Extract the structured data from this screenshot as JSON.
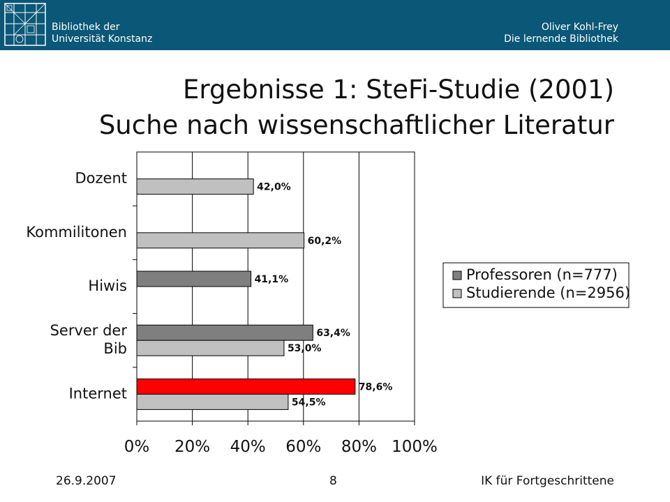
{
  "header": {
    "institution_line1": "Bibliothek der",
    "institution_line2": "Universität Konstanz",
    "author": "Oliver Kohl-Frey",
    "subtitle": "Die lernende Bibliothek",
    "background_color": "#0b5777",
    "logo_icon": "university-library-logo-icon"
  },
  "slide": {
    "title_line1": "Ergebnisse 1: SteFi-Studie (2001)",
    "title_line2": "Suche nach wissenschaftlicher Literatur"
  },
  "footer": {
    "date": "26.9.2007",
    "page_number": "8",
    "course": "IK für Fortgeschrittene"
  },
  "chart_data": {
    "type": "bar",
    "orientation": "horizontal",
    "title": "",
    "xlabel": "",
    "ylabel": "",
    "xlim": [
      0,
      100
    ],
    "x_ticks": [
      "0%",
      "20%",
      "40%",
      "60%",
      "80%",
      "100%"
    ],
    "grid": "vertical",
    "categories": [
      "Dozent",
      "Kommilitonen",
      "Hiwis",
      "Server der Bib",
      "Internet"
    ],
    "category_label_lines": [
      [
        "Dozent"
      ],
      [
        "Kommilitonen"
      ],
      [
        "Hiwis"
      ],
      [
        "Server der",
        "Bib"
      ],
      [
        "Internet"
      ]
    ],
    "series": [
      {
        "name": "Professoren (n=777)",
        "color": "#7f7f7f",
        "values": [
          null,
          null,
          41.1,
          63.4,
          78.6
        ],
        "labels": [
          "",
          "",
          "41,1%",
          "63,4%",
          "78,6%"
        ],
        "highlight": [
          null,
          null,
          null,
          null,
          "#ff0000"
        ]
      },
      {
        "name": "Studierende (n=2956)",
        "color": "#c0c0c0",
        "values": [
          42.0,
          60.2,
          null,
          53.0,
          54.5
        ],
        "labels": [
          "42,0%",
          "60,2%",
          "",
          "53,0%",
          "54,5%"
        ],
        "highlight": [
          null,
          null,
          null,
          null,
          null
        ]
      }
    ],
    "legend_position": "right"
  }
}
